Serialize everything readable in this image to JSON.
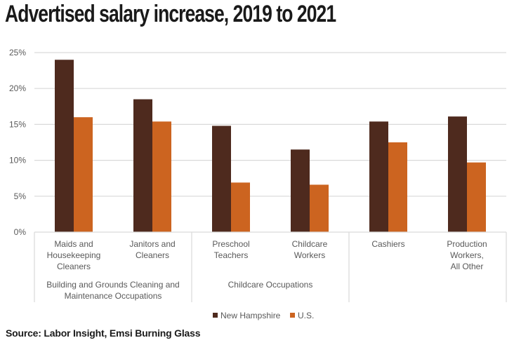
{
  "chart_data": {
    "type": "bar",
    "title": "Advertised salary increase, 2019 to 2021",
    "xlabel": "",
    "ylabel": "",
    "ylim": [
      0,
      25
    ],
    "yticks": [
      "0%",
      "5%",
      "10%",
      "15%",
      "20%",
      "25%"
    ],
    "ytick_values": [
      0,
      5,
      10,
      15,
      20,
      25
    ],
    "grid": true,
    "categories": [
      [
        "Maids and",
        "Housekeeping",
        "Cleaners"
      ],
      [
        "Janitors and",
        "Cleaners"
      ],
      [
        "Preschool",
        "Teachers"
      ],
      [
        "Childcare",
        "Workers"
      ],
      [
        "Cashiers"
      ],
      [
        "Production",
        "Workers,",
        "All Other"
      ]
    ],
    "category_groups": [
      {
        "label": [
          "Building and Grounds Cleaning and",
          "Maintenance Occupations"
        ],
        "span": [
          0,
          1
        ]
      },
      {
        "label": [
          "Childcare Occupations"
        ],
        "span": [
          2,
          3
        ]
      },
      {
        "label": [],
        "span": [
          4,
          5
        ]
      }
    ],
    "series": [
      {
        "name": "New Hampshire",
        "color": "#4E2A1E",
        "values": [
          24.0,
          18.5,
          14.8,
          11.5,
          15.4,
          16.1
        ]
      },
      {
        "name": "U.S.",
        "color": "#CC6420",
        "values": [
          16.0,
          15.4,
          6.9,
          6.6,
          12.5,
          9.7
        ]
      }
    ],
    "legend_position": "bottom"
  },
  "source": "Source: Labor Insight, Emsi Burning Glass"
}
